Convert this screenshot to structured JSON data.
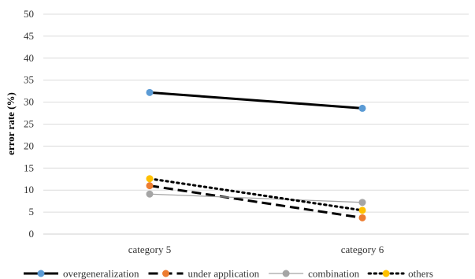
{
  "chart_data": {
    "type": "line",
    "categories": [
      "category 5",
      "category 6"
    ],
    "ylabel": "error rate (%)",
    "xlabel": "",
    "ylim": [
      0,
      50
    ],
    "yticks": [
      0,
      5,
      10,
      15,
      20,
      25,
      30,
      35,
      40,
      45,
      50
    ],
    "grid": true,
    "legend_position": "bottom",
    "series": [
      {
        "name": "overgeneralization",
        "values": [
          32.2,
          28.6
        ],
        "color": "#000000",
        "marker_color": "#5b9bd5",
        "line_style": "solid-thick"
      },
      {
        "name": "under application",
        "values": [
          11.0,
          3.7
        ],
        "color": "#000000",
        "marker_color": "#ed7d31",
        "line_style": "dashed"
      },
      {
        "name": "combination",
        "values": [
          9.1,
          7.2
        ],
        "color": "#a5a5a5",
        "marker_color": "#a5a5a5",
        "line_style": "solid-thin"
      },
      {
        "name": "others",
        "values": [
          12.6,
          5.4
        ],
        "color": "#000000",
        "marker_color": "#ffc000",
        "line_style": "dotted"
      }
    ]
  }
}
